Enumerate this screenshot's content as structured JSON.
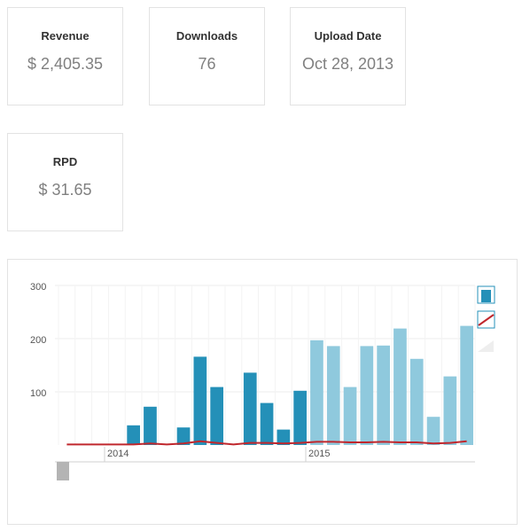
{
  "stats": [
    {
      "label": "Revenue",
      "value": "$ 2,405.35"
    },
    {
      "label": "Downloads",
      "value": "76"
    },
    {
      "label": "Upload Date",
      "value": "Oct 28, 2013"
    },
    {
      "label": "RPD",
      "value": "$ 31.65"
    }
  ],
  "colors": {
    "bar_dark": "#2490b8",
    "bar_light": "#8fc9dd",
    "line": "#c0272d",
    "grid": "#eeeeee",
    "axis_text": "#555555",
    "navigator": "#b4b4b4"
  },
  "chart_data": {
    "type": "bar",
    "x_ticks": [
      "2014",
      "2015"
    ],
    "y_ticks": [
      "100",
      "200",
      "300"
    ],
    "ylim": [
      0,
      300
    ],
    "grid": true,
    "legend": "top-right",
    "series": [
      {
        "type": "bar",
        "values": [
          0,
          0,
          0,
          0,
          37,
          72,
          0,
          33,
          166,
          109,
          0,
          136,
          79,
          29,
          102,
          197,
          186,
          109,
          186,
          187,
          219,
          162,
          53,
          129,
          224
        ],
        "color_split_index": 15
      },
      {
        "type": "line",
        "values": [
          1,
          1,
          1,
          1,
          1,
          3,
          1,
          3,
          7,
          4,
          1,
          4,
          4,
          3,
          4,
          6,
          6,
          5,
          5,
          6,
          5,
          5,
          3,
          4,
          7
        ]
      }
    ]
  }
}
